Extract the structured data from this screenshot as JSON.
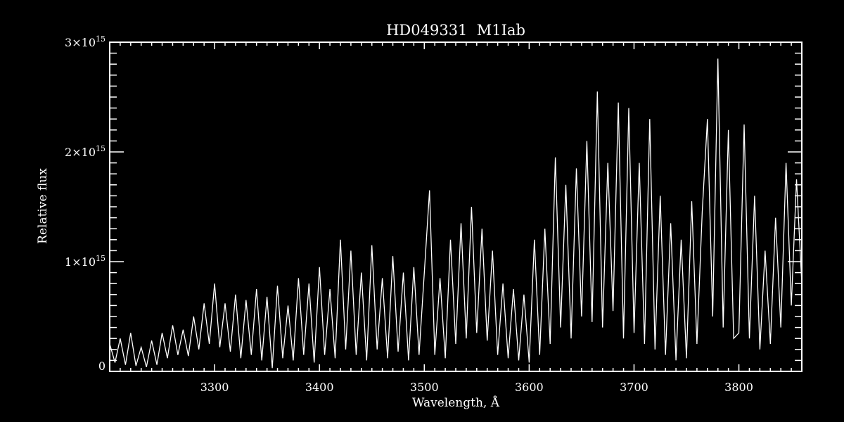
{
  "chart_data": {
    "type": "line",
    "title": "HD049331  M1Iab",
    "xlabel": "Wavelength, Å",
    "ylabel": "Relative flux",
    "xlim": [
      3200,
      3860
    ],
    "ylim": [
      0,
      3000000000000000.0
    ],
    "x_ticks": [
      3300,
      3400,
      3500,
      3600,
      3700,
      3800
    ],
    "x_tick_labels": [
      "3300",
      "3400",
      "3500",
      "3600",
      "3700",
      "3800"
    ],
    "y_ticks": [
      0,
      1000000000000000.0,
      2000000000000000.0,
      3000000000000000.0
    ],
    "y_tick_labels": [
      {
        "mantissa": "0",
        "exponent": ""
      },
      {
        "mantissa": "1×10",
        "exponent": "15"
      },
      {
        "mantissa": "2×10",
        "exponent": "15"
      },
      {
        "mantissa": "3×10",
        "exponent": "15"
      }
    ],
    "grid": false,
    "background": "#000000",
    "line_color": "#ffffff",
    "series": [
      {
        "points": [
          [
            3200,
            250000000000000.0
          ],
          [
            3205,
            80000000000000.0
          ],
          [
            3210,
            300000000000000.0
          ],
          [
            3215,
            60000000000000.0
          ],
          [
            3220,
            350000000000000.0
          ],
          [
            3225,
            50000000000000.0
          ],
          [
            3230,
            220000000000000.0
          ],
          [
            3235,
            40000000000000.0
          ],
          [
            3240,
            280000000000000.0
          ],
          [
            3245,
            60000000000000.0
          ],
          [
            3250,
            350000000000000.0
          ],
          [
            3255,
            120000000000000.0
          ],
          [
            3260,
            420000000000000.0
          ],
          [
            3265,
            150000000000000.0
          ],
          [
            3270,
            380000000000000.0
          ],
          [
            3275,
            140000000000000.0
          ],
          [
            3280,
            500000000000000.0
          ],
          [
            3285,
            200000000000000.0
          ],
          [
            3290,
            620000000000000.0
          ],
          [
            3295,
            250000000000000.0
          ],
          [
            3300,
            800000000000000.0
          ],
          [
            3305,
            220000000000000.0
          ],
          [
            3310,
            620000000000000.0
          ],
          [
            3315,
            180000000000000.0
          ],
          [
            3320,
            700000000000000.0
          ],
          [
            3325,
            120000000000000.0
          ],
          [
            3330,
            650000000000000.0
          ],
          [
            3335,
            150000000000000.0
          ],
          [
            3340,
            750000000000000.0
          ],
          [
            3345,
            100000000000000.0
          ],
          [
            3350,
            680000000000000.0
          ],
          [
            3355,
            30000000000000.0
          ],
          [
            3360,
            780000000000000.0
          ],
          [
            3365,
            120000000000000.0
          ],
          [
            3370,
            600000000000000.0
          ],
          [
            3375,
            100000000000000.0
          ],
          [
            3380,
            850000000000000.0
          ],
          [
            3385,
            150000000000000.0
          ],
          [
            3390,
            800000000000000.0
          ],
          [
            3395,
            80000000000000.0
          ],
          [
            3400,
            950000000000000.0
          ],
          [
            3405,
            150000000000000.0
          ],
          [
            3410,
            750000000000000.0
          ],
          [
            3415,
            120000000000000.0
          ],
          [
            3420,
            1200000000000000.0
          ],
          [
            3425,
            200000000000000.0
          ],
          [
            3430,
            1100000000000000.0
          ],
          [
            3435,
            150000000000000.0
          ],
          [
            3440,
            900000000000000.0
          ],
          [
            3445,
            100000000000000.0
          ],
          [
            3450,
            1150000000000000.0
          ],
          [
            3455,
            200000000000000.0
          ],
          [
            3460,
            850000000000000.0
          ],
          [
            3465,
            120000000000000.0
          ],
          [
            3470,
            1050000000000000.0
          ],
          [
            3475,
            180000000000000.0
          ],
          [
            3480,
            900000000000000.0
          ],
          [
            3485,
            100000000000000.0
          ],
          [
            3490,
            950000000000000.0
          ],
          [
            3495,
            150000000000000.0
          ],
          [
            3500,
            900000000000000.0
          ],
          [
            3505,
            1650000000000000.0
          ],
          [
            3510,
            150000000000000.0
          ],
          [
            3515,
            850000000000000.0
          ],
          [
            3520,
            120000000000000.0
          ],
          [
            3525,
            1200000000000000.0
          ],
          [
            3530,
            250000000000000.0
          ],
          [
            3535,
            1350000000000000.0
          ],
          [
            3540,
            300000000000000.0
          ],
          [
            3545,
            1500000000000000.0
          ],
          [
            3550,
            350000000000000.0
          ],
          [
            3555,
            1300000000000000.0
          ],
          [
            3560,
            280000000000000.0
          ],
          [
            3565,
            1100000000000000.0
          ],
          [
            3570,
            150000000000000.0
          ],
          [
            3575,
            800000000000000.0
          ],
          [
            3580,
            120000000000000.0
          ],
          [
            3585,
            750000000000000.0
          ],
          [
            3590,
            100000000000000.0
          ],
          [
            3595,
            700000000000000.0
          ],
          [
            3600,
            80000000000000.0
          ],
          [
            3605,
            1200000000000000.0
          ],
          [
            3610,
            150000000000000.0
          ],
          [
            3615,
            1300000000000000.0
          ],
          [
            3620,
            250000000000000.0
          ],
          [
            3625,
            1950000000000000.0
          ],
          [
            3630,
            400000000000000.0
          ],
          [
            3635,
            1700000000000000.0
          ],
          [
            3640,
            300000000000000.0
          ],
          [
            3645,
            1850000000000000.0
          ],
          [
            3650,
            500000000000000.0
          ],
          [
            3655,
            2100000000000000.0
          ],
          [
            3660,
            450000000000000.0
          ],
          [
            3665,
            2550000000000000.0
          ],
          [
            3670,
            400000000000000.0
          ],
          [
            3675,
            1900000000000000.0
          ],
          [
            3680,
            550000000000000.0
          ],
          [
            3685,
            2450000000000000.0
          ],
          [
            3690,
            300000000000000.0
          ],
          [
            3695,
            2400000000000000.0
          ],
          [
            3700,
            350000000000000.0
          ],
          [
            3705,
            1900000000000000.0
          ],
          [
            3710,
            250000000000000.0
          ],
          [
            3715,
            2300000000000000.0
          ],
          [
            3720,
            200000000000000.0
          ],
          [
            3725,
            1600000000000000.0
          ],
          [
            3730,
            150000000000000.0
          ],
          [
            3735,
            1350000000000000.0
          ],
          [
            3740,
            100000000000000.0
          ],
          [
            3745,
            1200000000000000.0
          ],
          [
            3750,
            120000000000000.0
          ],
          [
            3755,
            1550000000000000.0
          ],
          [
            3760,
            250000000000000.0
          ],
          [
            3765,
            1450000000000000.0
          ],
          [
            3770,
            2300000000000000.0
          ],
          [
            3775,
            500000000000000.0
          ],
          [
            3780,
            2850000000000000.0
          ],
          [
            3785,
            400000000000000.0
          ],
          [
            3790,
            2200000000000000.0
          ],
          [
            3795,
            300000000000000.0
          ],
          [
            3800,
            350000000000000.0
          ],
          [
            3805,
            2250000000000000.0
          ],
          [
            3810,
            300000000000000.0
          ],
          [
            3815,
            1600000000000000.0
          ],
          [
            3820,
            200000000000000.0
          ],
          [
            3825,
            1100000000000000.0
          ],
          [
            3830,
            250000000000000.0
          ],
          [
            3835,
            1400000000000000.0
          ],
          [
            3840,
            400000000000000.0
          ],
          [
            3845,
            1900000000000000.0
          ],
          [
            3850,
            600000000000000.0
          ],
          [
            3855,
            1750000000000000.0
          ],
          [
            3860,
            800000000000000.0
          ]
        ]
      }
    ]
  }
}
